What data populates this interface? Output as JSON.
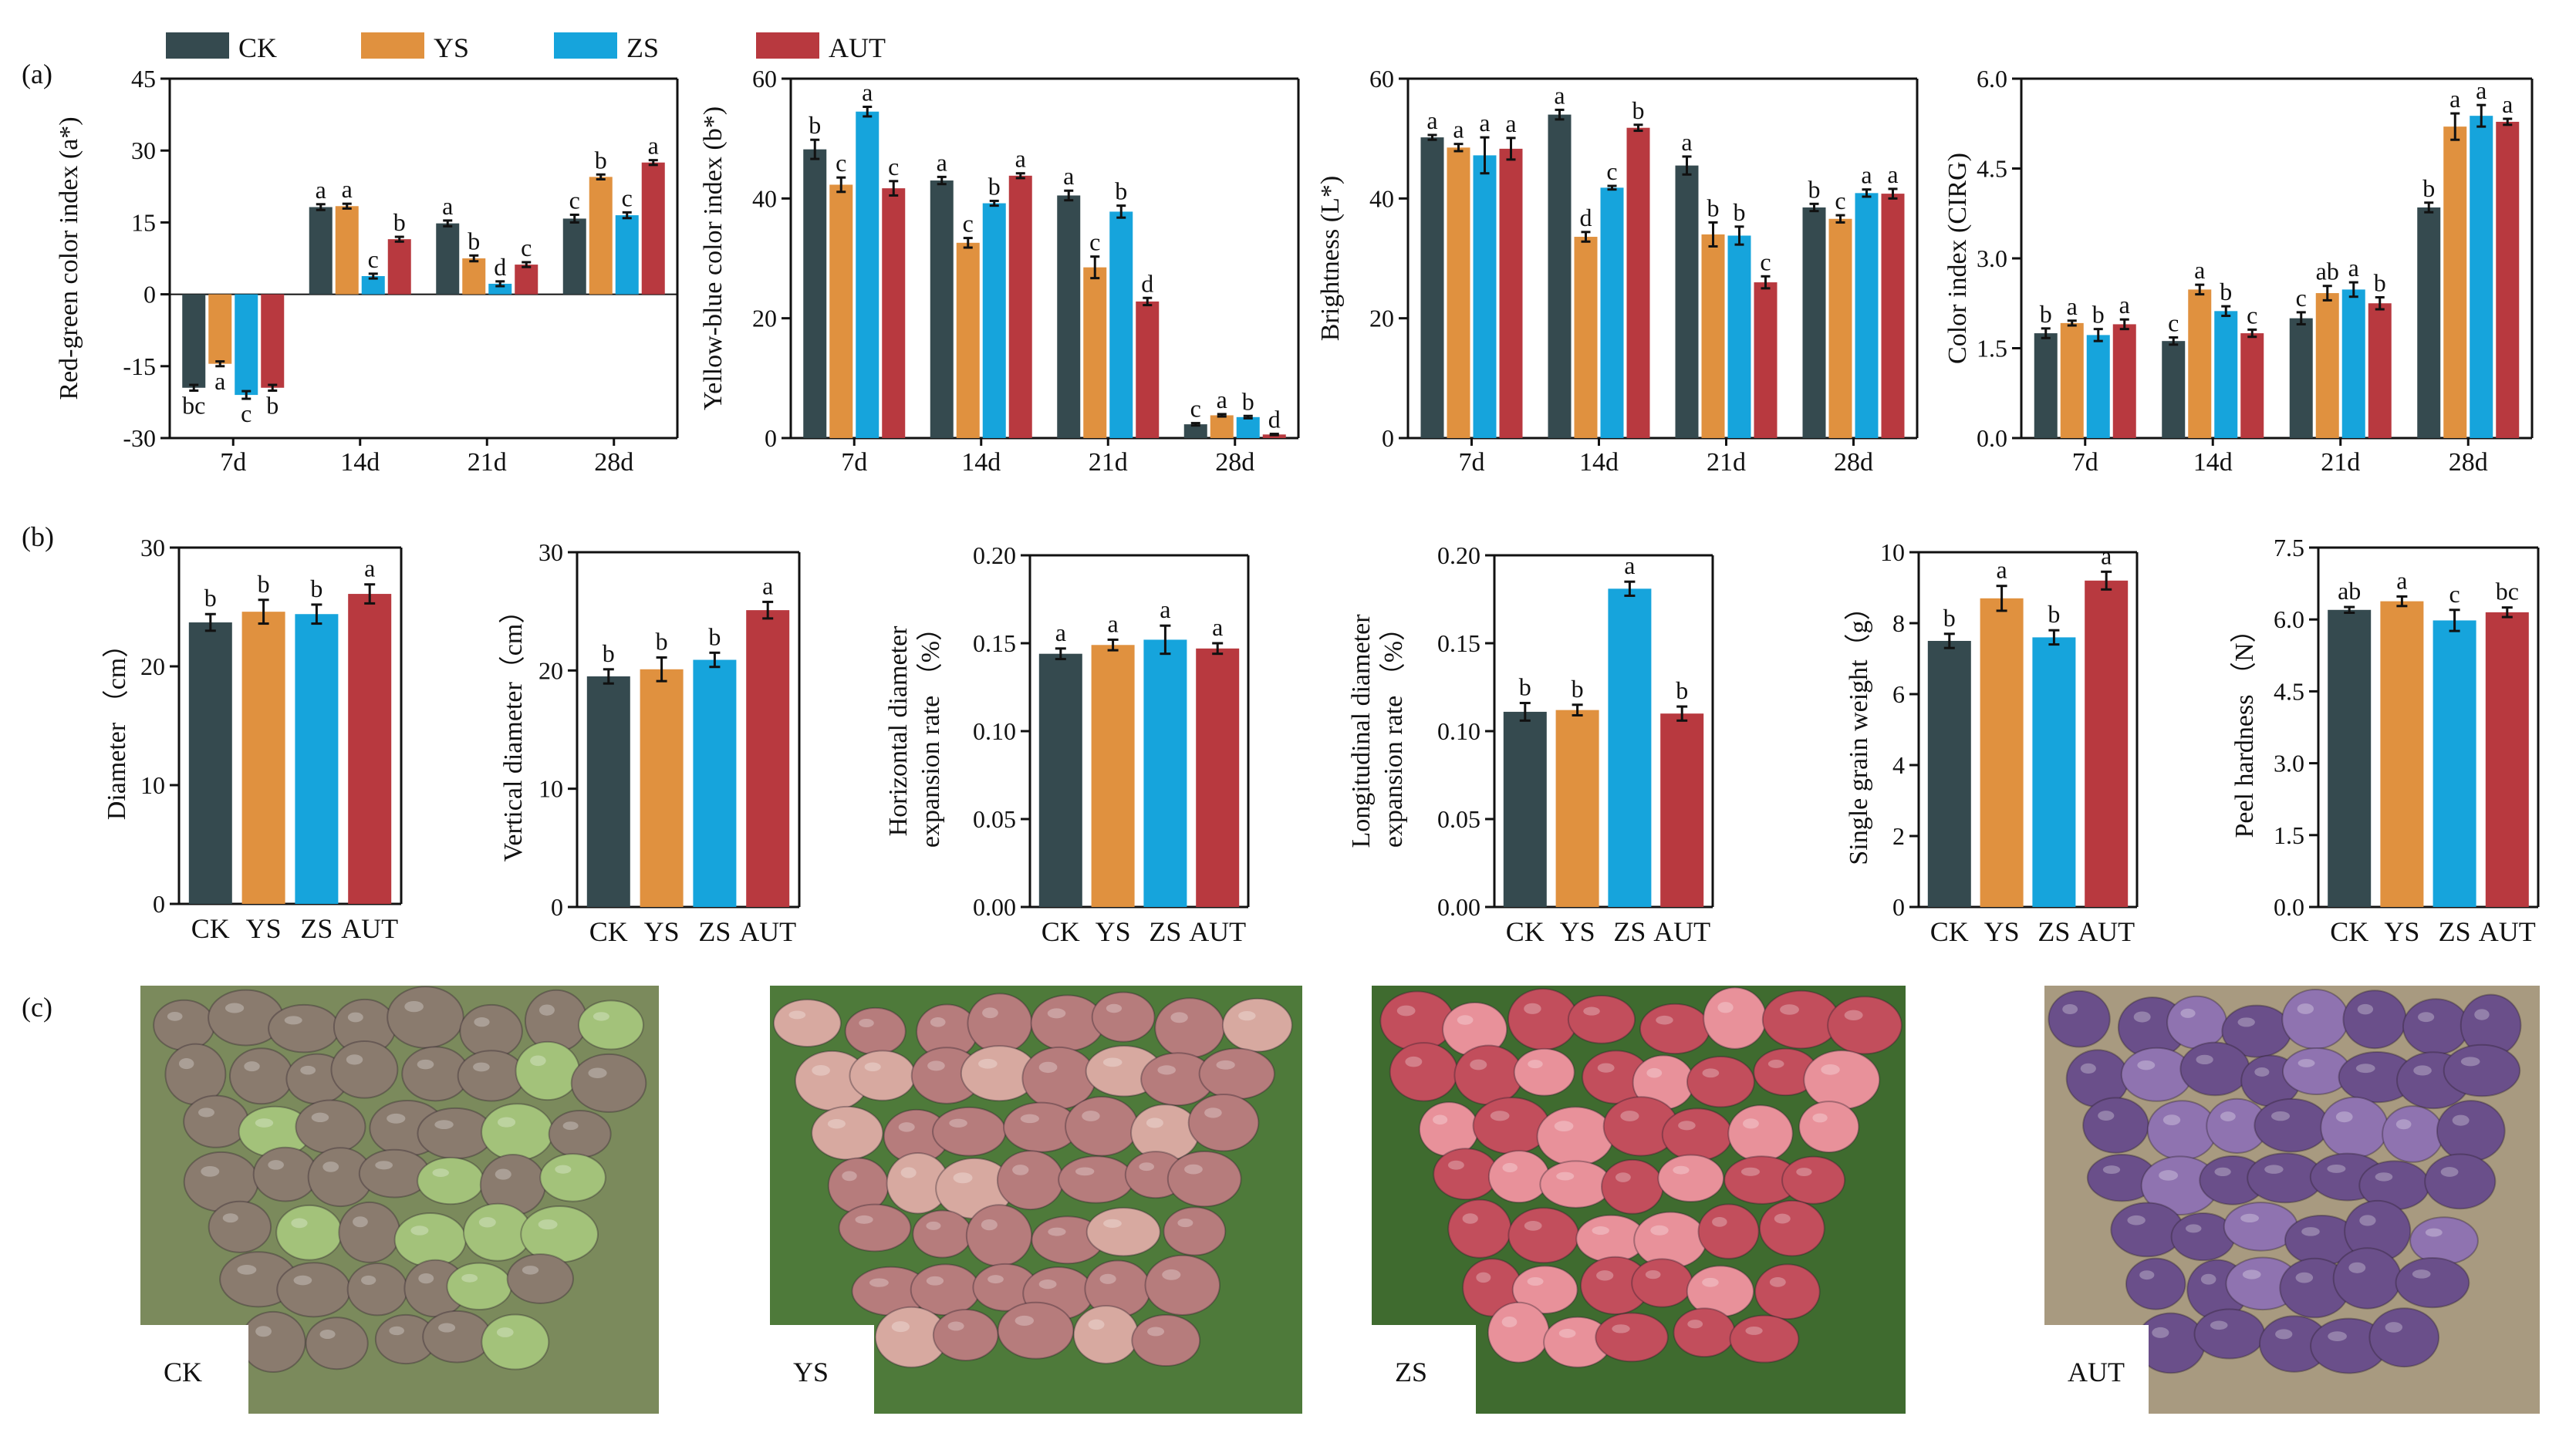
{
  "colors": {
    "CK": "#354a4f",
    "YS": "#e0913f",
    "ZS": "#16a4dc",
    "AUT": "#b8393f"
  },
  "panel_labels": {
    "a": "(a)",
    "b": "(b)",
    "c": "(c)"
  },
  "legend": [
    {
      "name": "CK",
      "color": "#354a4f"
    },
    {
      "name": "YS",
      "color": "#e0913f"
    },
    {
      "name": "ZS",
      "color": "#16a4dc"
    },
    {
      "name": "AUT",
      "color": "#b8393f"
    }
  ],
  "chart_data": [
    {
      "type": "bar",
      "title": "",
      "xlabel": "",
      "ylabel": "Red-green color index (a*)",
      "categories": [
        "7d",
        "14d",
        "21d",
        "28d"
      ],
      "ylim": [
        -30,
        45
      ],
      "yticks": [
        "-30",
        "-15",
        "0",
        "15",
        "30",
        "45"
      ],
      "yticks_values": [
        -30,
        -15,
        0,
        15,
        30,
        45
      ],
      "series": [
        {
          "name": "CK",
          "values": [
            -19.5,
            18.2,
            14.8,
            15.8
          ],
          "errors": [
            0.6,
            0.6,
            0.6,
            0.8
          ],
          "letters": [
            "bc",
            "a",
            "a",
            "c"
          ]
        },
        {
          "name": "YS",
          "values": [
            -14.5,
            18.4,
            7.5,
            24.5
          ],
          "errors": [
            0.5,
            0.5,
            0.6,
            0.5
          ],
          "letters": [
            "a",
            "a",
            "b",
            "b"
          ]
        },
        {
          "name": "ZS",
          "values": [
            -21.0,
            3.8,
            2.2,
            16.5
          ],
          "errors": [
            0.8,
            0.5,
            0.5,
            0.6
          ],
          "letters": [
            "c",
            "c",
            "d",
            "c"
          ]
        },
        {
          "name": "AUT",
          "values": [
            -19.5,
            11.5,
            6.2,
            27.5
          ],
          "errors": [
            0.6,
            0.5,
            0.5,
            0.5
          ],
          "letters": [
            "b",
            "b",
            "c",
            "a"
          ]
        }
      ]
    },
    {
      "type": "bar",
      "title": "",
      "xlabel": "",
      "ylabel": "Yellow-blue color index (b*)",
      "categories": [
        "7d",
        "14d",
        "21d",
        "28d"
      ],
      "ylim": [
        0,
        60
      ],
      "yticks": [
        "0",
        "20",
        "40",
        "60"
      ],
      "yticks_values": [
        0,
        20,
        40,
        60
      ],
      "series": [
        {
          "name": "CK",
          "values": [
            48.2,
            43.0,
            40.5,
            2.3
          ],
          "errors": [
            1.6,
            0.6,
            0.8,
            0.2
          ],
          "letters": [
            "b",
            "a",
            "a",
            "c"
          ]
        },
        {
          "name": "YS",
          "values": [
            42.3,
            32.6,
            28.5,
            3.8
          ],
          "errors": [
            1.2,
            0.8,
            1.8,
            0.2
          ],
          "letters": [
            "c",
            "c",
            "c",
            "a"
          ]
        },
        {
          "name": "ZS",
          "values": [
            54.5,
            39.2,
            37.8,
            3.5
          ],
          "errors": [
            0.8,
            0.4,
            1.0,
            0.2
          ],
          "letters": [
            "a",
            "b",
            "b",
            "b"
          ]
        },
        {
          "name": "AUT",
          "values": [
            41.7,
            43.8,
            22.8,
            0.6
          ],
          "errors": [
            1.2,
            0.4,
            0.6,
            0.1
          ],
          "letters": [
            "c",
            "a",
            "d",
            "d"
          ]
        }
      ]
    },
    {
      "type": "bar",
      "title": "",
      "xlabel": "",
      "ylabel": "Brightness (L*)",
      "categories": [
        "7d",
        "14d",
        "21d",
        "28d"
      ],
      "ylim": [
        0,
        60
      ],
      "yticks": [
        "0",
        "20",
        "40",
        "60"
      ],
      "yticks_values": [
        0,
        20,
        40,
        60
      ],
      "series": [
        {
          "name": "CK",
          "values": [
            50.2,
            54.0,
            45.5,
            38.5
          ],
          "errors": [
            0.4,
            0.8,
            1.5,
            0.6
          ],
          "letters": [
            "a",
            "a",
            "a",
            "b"
          ]
        },
        {
          "name": "YS",
          "values": [
            48.5,
            33.6,
            34.0,
            36.6
          ],
          "errors": [
            0.6,
            0.8,
            2.0,
            0.6
          ],
          "letters": [
            "a",
            "d",
            "b",
            "c"
          ]
        },
        {
          "name": "ZS",
          "values": [
            47.2,
            41.8,
            33.8,
            40.9
          ],
          "errors": [
            3.0,
            0.3,
            1.5,
            0.6
          ],
          "letters": [
            "a",
            "c",
            "b",
            "a"
          ]
        },
        {
          "name": "AUT",
          "values": [
            48.3,
            51.8,
            26.0,
            40.8
          ],
          "errors": [
            1.8,
            0.5,
            1.0,
            0.8
          ],
          "letters": [
            "a",
            "b",
            "c",
            "a"
          ]
        }
      ]
    },
    {
      "type": "bar",
      "title": "",
      "xlabel": "",
      "ylabel": "Color index (CIRG)",
      "categories": [
        "7d",
        "14d",
        "21d",
        "28d"
      ],
      "ylim": [
        0,
        6
      ],
      "yticks": [
        "0.0",
        "1.5",
        "3.0",
        "4.5",
        "6.0"
      ],
      "yticks_values": [
        0,
        1.5,
        3,
        4.5,
        6
      ],
      "series": [
        {
          "name": "CK",
          "values": [
            1.75,
            1.62,
            2.0,
            3.85
          ],
          "errors": [
            0.08,
            0.06,
            0.1,
            0.08
          ],
          "letters": [
            "b",
            "c",
            "c",
            "b"
          ]
        },
        {
          "name": "YS",
          "values": [
            1.92,
            2.48,
            2.42,
            5.2
          ],
          "errors": [
            0.04,
            0.08,
            0.12,
            0.22
          ],
          "letters": [
            "a",
            "a",
            "ab",
            "a"
          ]
        },
        {
          "name": "ZS",
          "values": [
            1.72,
            2.12,
            2.48,
            5.38
          ],
          "errors": [
            0.1,
            0.08,
            0.12,
            0.18
          ],
          "letters": [
            "b",
            "b",
            "a",
            "a"
          ]
        },
        {
          "name": "AUT",
          "values": [
            1.9,
            1.75,
            2.25,
            5.28
          ],
          "errors": [
            0.08,
            0.06,
            0.1,
            0.05
          ],
          "letters": [
            "a",
            "c",
            "b",
            "a"
          ]
        }
      ]
    },
    {
      "type": "bar",
      "title": "",
      "xlabel": "",
      "ylabel": "Diameter （cm）",
      "categories": [
        "CK",
        "YS",
        "ZS",
        "AUT"
      ],
      "ylim": [
        0,
        30
      ],
      "yticks": [
        "0",
        "10",
        "20",
        "30"
      ],
      "yticks_values": [
        0,
        10,
        20,
        30
      ],
      "values": [
        23.7,
        24.6,
        24.4,
        26.1
      ],
      "errors": [
        0.7,
        1.0,
        0.8,
        0.8
      ],
      "letters": [
        "b",
        "b",
        "b",
        "a"
      ]
    },
    {
      "type": "bar",
      "title": "",
      "xlabel": "",
      "ylabel": "Vertical diameter（cm）",
      "categories": [
        "CK",
        "YS",
        "ZS",
        "AUT"
      ],
      "ylim": [
        0,
        30
      ],
      "yticks": [
        "0",
        "10",
        "20",
        "30"
      ],
      "yticks_values": [
        0,
        10,
        20,
        30
      ],
      "values": [
        19.5,
        20.1,
        20.9,
        25.1
      ],
      "errors": [
        0.6,
        1.0,
        0.6,
        0.7
      ],
      "letters": [
        "b",
        "b",
        "b",
        "a"
      ]
    },
    {
      "type": "bar",
      "title": "",
      "xlabel": "",
      "ylabel_lines": [
        "Horizontal diameter",
        "expansion rate （%）"
      ],
      "categories": [
        "CK",
        "YS",
        "ZS",
        "AUT"
      ],
      "ylim": [
        0,
        0.2
      ],
      "yticks": [
        "0.00",
        "0.05",
        "0.10",
        "0.15",
        "0.20"
      ],
      "yticks_values": [
        0,
        0.05,
        0.1,
        0.15,
        0.2
      ],
      "values": [
        0.144,
        0.149,
        0.152,
        0.147
      ],
      "errors": [
        0.003,
        0.003,
        0.008,
        0.003
      ],
      "letters": [
        "a",
        "a",
        "a",
        "a"
      ]
    },
    {
      "type": "bar",
      "title": "",
      "xlabel": "",
      "ylabel_lines": [
        "Longitudinal diameter",
        "expansion rate （%）"
      ],
      "categories": [
        "CK",
        "YS",
        "ZS",
        "AUT"
      ],
      "ylim": [
        0,
        0.2
      ],
      "yticks": [
        "0.00",
        "0.05",
        "0.10",
        "0.15",
        "0.20"
      ],
      "yticks_values": [
        0,
        0.05,
        0.1,
        0.15,
        0.2
      ],
      "values": [
        0.111,
        0.112,
        0.181,
        0.11
      ],
      "errors": [
        0.005,
        0.003,
        0.004,
        0.004
      ],
      "letters": [
        "b",
        "b",
        "a",
        "b"
      ]
    },
    {
      "type": "bar",
      "title": "",
      "xlabel": "",
      "ylabel": "Single grain weight（g）",
      "categories": [
        "CK",
        "YS",
        "ZS",
        "AUT"
      ],
      "ylim": [
        0,
        10
      ],
      "yticks": [
        "0",
        "2",
        "4",
        "6",
        "8",
        "10"
      ],
      "yticks_values": [
        0,
        2,
        4,
        6,
        8,
        10
      ],
      "values": [
        7.5,
        8.7,
        7.6,
        9.2
      ],
      "errors": [
        0.2,
        0.35,
        0.2,
        0.25
      ],
      "letters": [
        "b",
        "a",
        "b",
        "a"
      ]
    },
    {
      "type": "bar",
      "title": "",
      "xlabel": "",
      "ylabel": "Peel hardness （N）",
      "categories": [
        "CK",
        "YS",
        "ZS",
        "AUT"
      ],
      "ylim": [
        0,
        7.5
      ],
      "yticks": [
        "0.0",
        "1.5",
        "3.0",
        "4.5",
        "6.0",
        "7.5"
      ],
      "yticks_values": [
        0,
        1.5,
        3,
        4.5,
        6,
        7.5
      ],
      "values": [
        6.2,
        6.38,
        5.98,
        6.15
      ],
      "errors": [
        0.06,
        0.1,
        0.22,
        0.1
      ],
      "letters": [
        "ab",
        "a",
        "c",
        "bc"
      ]
    }
  ],
  "photos": [
    {
      "label": "CK",
      "bg": "#7b8a5c",
      "berry": "#8a7b6e",
      "highlight": "#a3c27a"
    },
    {
      "label": "YS",
      "bg": "#4e7a3a",
      "berry": "#b67c7c",
      "highlight": "#d7a9a0"
    },
    {
      "label": "ZS",
      "bg": "#3f6b2f",
      "berry": "#c24e5c",
      "highlight": "#e8919a"
    },
    {
      "label": "AUT",
      "bg": "#a89a80",
      "berry": "#6a4f8a",
      "highlight": "#8f73b0"
    }
  ]
}
